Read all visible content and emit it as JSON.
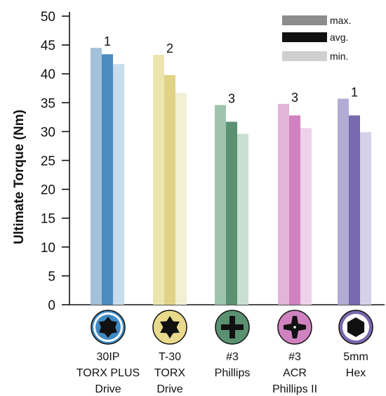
{
  "chart_data": {
    "type": "bar",
    "ylabel": "Ultimate Torque (Nm)",
    "ylim": [
      0,
      50
    ],
    "yticks": [
      0,
      5,
      10,
      15,
      20,
      25,
      30,
      35,
      40,
      45,
      50
    ],
    "categories": [
      [
        "30IP",
        "TORX PLUS",
        "Drive"
      ],
      [
        "T-30",
        "TORX",
        "Drive"
      ],
      [
        "#3",
        "Phillips"
      ],
      [
        "#3",
        "ACR",
        "Phillips II"
      ],
      [
        "5mm",
        "Hex"
      ]
    ],
    "category_icons": [
      "torx-plus-drive-icon",
      "torx-drive-icon",
      "phillips-drive-icon",
      "acr-phillips-drive-icon",
      "hex-drive-icon"
    ],
    "series": [
      {
        "name": "max.",
        "values": [
          44.5,
          43.3,
          34.6,
          34.8,
          35.7
        ]
      },
      {
        "name": "avg.",
        "values": [
          43.4,
          39.8,
          31.7,
          32.8,
          32.8
        ]
      },
      {
        "name": "min.",
        "values": [
          41.7,
          36.7,
          29.6,
          30.6,
          29.9
        ]
      }
    ],
    "annotations": [
      "1",
      "2",
      "3",
      "3",
      "1"
    ],
    "legend": {
      "position": "top-right",
      "colors": [
        "#8c8c8c",
        "#111111",
        "#cfcfcf"
      ]
    },
    "category_colors": [
      [
        "#a3c1da",
        "#4c8bc0",
        "#c9dcec"
      ],
      [
        "#ece5ae",
        "#e0d385",
        "#f3efd3"
      ],
      [
        "#9ec4ad",
        "#5a9170",
        "#c9e0d1"
      ],
      [
        "#e2b4d8",
        "#cf82bf",
        "#efd1e8"
      ],
      [
        "#b2acd5",
        "#7868ad",
        "#d5d1ea"
      ]
    ],
    "icon_colors": {
      "fills": [
        "#3f8ac3",
        "#e8d98c",
        "#5a9170",
        "#cf82bf",
        "#7868ad"
      ],
      "inner": [
        "#ffffff",
        "#ffffff",
        "#ffffff",
        "#ffffff",
        "#ffffff"
      ]
    },
    "grid": false
  }
}
